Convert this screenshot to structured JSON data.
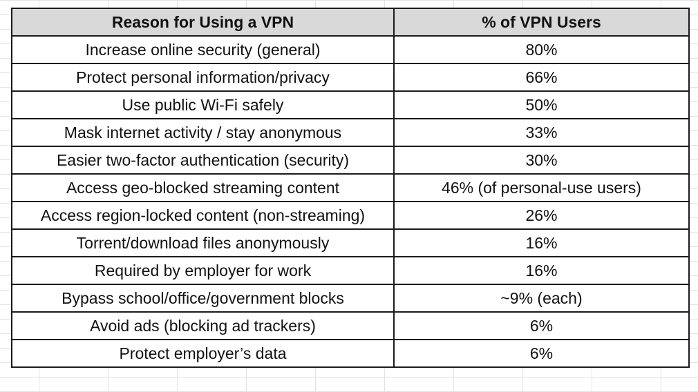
{
  "table": {
    "headers": [
      "Reason for Using a VPN",
      "% of VPN Users"
    ],
    "rows": [
      [
        "Increase online security (general)",
        "80%"
      ],
      [
        "Protect personal information/privacy",
        "66%"
      ],
      [
        "Use public Wi-Fi safely",
        "50%"
      ],
      [
        "Mask internet activity / stay anonymous",
        "33%"
      ],
      [
        "Easier two-factor authentication (security)",
        "30%"
      ],
      [
        "Access geo-blocked streaming content",
        "46% (of personal-use users)"
      ],
      [
        "Access region-locked content (non-streaming)",
        "26%"
      ],
      [
        "Torrent/download files anonymously",
        "16%"
      ],
      [
        "Required by employer for work",
        "16%"
      ],
      [
        "Bypass school/office/government blocks",
        "~9% (each)"
      ],
      [
        "Avoid ads (blocking ad trackers)",
        "6%"
      ],
      [
        "Protect employer’s data",
        "6%"
      ]
    ]
  },
  "colors": {
    "header_background": "#d9d9d9",
    "border": "#1a1a1a",
    "gridline": "#e2e2e2"
  }
}
